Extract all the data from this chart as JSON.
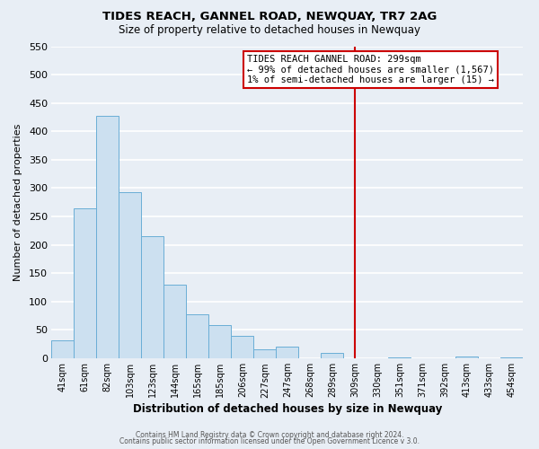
{
  "title": "TIDES REACH, GANNEL ROAD, NEWQUAY, TR7 2AG",
  "subtitle": "Size of property relative to detached houses in Newquay",
  "xlabel": "Distribution of detached houses by size in Newquay",
  "ylabel": "Number of detached properties",
  "bin_labels": [
    "41sqm",
    "61sqm",
    "82sqm",
    "103sqm",
    "123sqm",
    "144sqm",
    "165sqm",
    "185sqm",
    "206sqm",
    "227sqm",
    "247sqm",
    "268sqm",
    "289sqm",
    "309sqm",
    "330sqm",
    "351sqm",
    "371sqm",
    "392sqm",
    "413sqm",
    "433sqm",
    "454sqm"
  ],
  "bar_heights": [
    32,
    265,
    428,
    293,
    215,
    130,
    78,
    58,
    40,
    15,
    20,
    0,
    10,
    0,
    0,
    2,
    0,
    0,
    3,
    0,
    2
  ],
  "bar_color": "#cce0f0",
  "bar_edge_color": "#6aaed6",
  "ylim": [
    0,
    550
  ],
  "yticks": [
    0,
    50,
    100,
    150,
    200,
    250,
    300,
    350,
    400,
    450,
    500,
    550
  ],
  "vline_index": 13,
  "vline_color": "#cc0000",
  "annotation_title": "TIDES REACH GANNEL ROAD: 299sqm",
  "annotation_line1": "← 99% of detached houses are smaller (1,567)",
  "annotation_line2": "1% of semi-detached houses are larger (15) →",
  "annotation_box_color": "#ffffff",
  "annotation_box_edge": "#cc0000",
  "footer1": "Contains HM Land Registry data © Crown copyright and database right 2024.",
  "footer2": "Contains public sector information licensed under the Open Government Licence v 3.0.",
  "bg_color": "#e8eef5",
  "plot_bg_color": "#e8eef5",
  "grid_color": "#ffffff"
}
